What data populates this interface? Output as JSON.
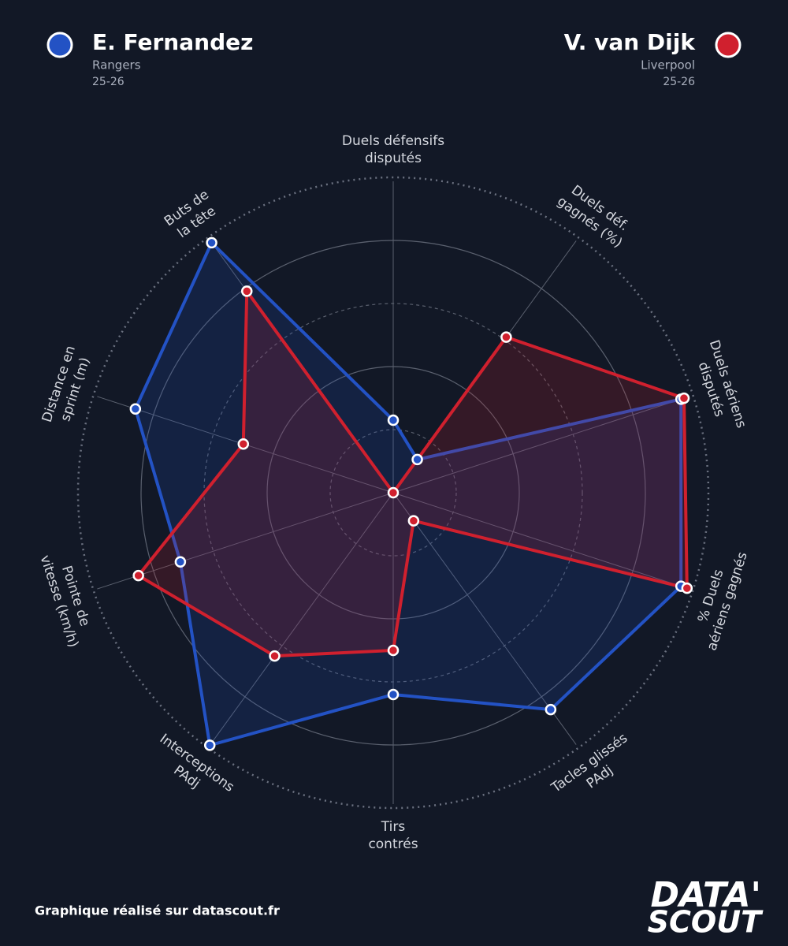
{
  "chart_data": {
    "type": "radar",
    "categories": [
      [
        "Duels défensifs",
        "disputés"
      ],
      [
        "Duels déf.",
        "gagnés (%)"
      ],
      [
        "Duels aériens",
        "disputés"
      ],
      [
        "% Duels",
        "aériens gagnés"
      ],
      [
        "Tacles glissés",
        "PAdj"
      ],
      [
        "Tirs",
        "contrés"
      ],
      [
        "Interceptions",
        "PAdj"
      ],
      [
        "Pointe de",
        "vitesse (km/h)"
      ],
      [
        "Distance en",
        "sprint (m)"
      ],
      [
        "Buts de",
        "la tête"
      ]
    ],
    "rlim": [
      0,
      100
    ],
    "rticks": [
      20,
      40,
      60,
      80,
      100
    ],
    "series": [
      {
        "name": "E. Fernandez",
        "team": "Rangers",
        "season": "25-26",
        "color": "#2352c4",
        "values": [
          23,
          13,
          96,
          96,
          85,
          64,
          99,
          71,
          86,
          98
        ]
      },
      {
        "name": "V. van Dijk",
        "team": "Liverpool",
        "season": "25-26",
        "color": "#d0202e",
        "values": [
          0,
          61,
          97,
          98,
          11,
          50,
          64,
          85,
          50,
          79
        ]
      }
    ],
    "footer": "Graphique réalisé sur datascout.fr",
    "logo": [
      "DATA'",
      "SCOUT"
    ]
  }
}
